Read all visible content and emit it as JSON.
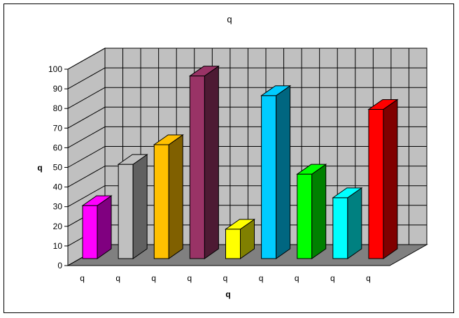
{
  "chart_data": {
    "type": "bar",
    "title": "q",
    "xlabel": "q",
    "ylabel": "q",
    "categories": [
      "q",
      "q",
      "q",
      "q",
      "q",
      "q",
      "q",
      "q",
      "q"
    ],
    "values": [
      27,
      48,
      58,
      93,
      15,
      83,
      43,
      31,
      76
    ],
    "ylim": [
      0,
      100
    ],
    "yticks": [
      0,
      10,
      20,
      30,
      40,
      50,
      60,
      70,
      80,
      90,
      100
    ],
    "grid": true,
    "three_d": true,
    "colors": [
      {
        "front": "#ff00ff",
        "side": "#800080",
        "top": "#ff00ff"
      },
      {
        "front": "#c0c0c0",
        "side": "#606060",
        "top": "#c0c0c0"
      },
      {
        "front": "#ffc000",
        "side": "#806000",
        "top": "#ffc000"
      },
      {
        "front": "#993366",
        "side": "#4d1a33",
        "top": "#993366"
      },
      {
        "front": "#ffff00",
        "side": "#808000",
        "top": "#ffff00"
      },
      {
        "front": "#00ccff",
        "side": "#006680",
        "top": "#00ccff"
      },
      {
        "front": "#00ff00",
        "side": "#008000",
        "top": "#00ff00"
      },
      {
        "front": "#00ffff",
        "side": "#008080",
        "top": "#00ffff"
      },
      {
        "front": "#ff0000",
        "side": "#800000",
        "top": "#ff0000"
      }
    ],
    "wall_color": "#c0c0c0",
    "floor_color": "#808080"
  }
}
